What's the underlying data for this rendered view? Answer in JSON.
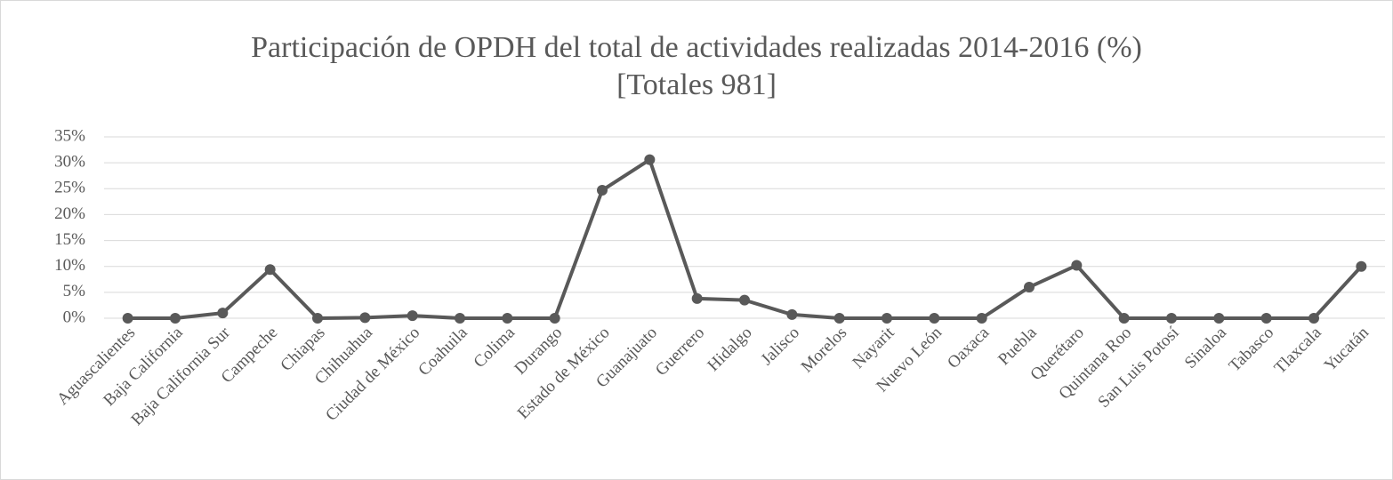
{
  "chart_data": {
    "type": "line",
    "title": "Participación de OPDH del total de actividades realizadas 2014-2016 (%)",
    "subtitle": "[Totales 981]",
    "categories": [
      "Aguascalientes",
      "Baja California",
      "Baja California Sur",
      "Campeche",
      "Chiapas",
      "Chihuahua",
      "Ciudad de México",
      "Coahuila",
      "Colima",
      "Durango",
      "Estado de México",
      "Guanajuato",
      "Guerrero",
      "Hidalgo",
      "Jalisco",
      "Morelos",
      "Nayarit",
      "Nuevo León",
      "Oaxaca",
      "Puebla",
      "Querétaro",
      "Quintana Roo",
      "San Luis Potosí",
      "Sinaloa",
      "Tabasco",
      "Tlaxcala",
      "Yucatán"
    ],
    "values": [
      0,
      0,
      1.0,
      9.4,
      0,
      0.1,
      0.5,
      0,
      0,
      0,
      24.7,
      30.6,
      3.8,
      3.5,
      0.7,
      0,
      0,
      0,
      0,
      6.0,
      10.2,
      0,
      0,
      0,
      0,
      0,
      10.0
    ],
    "color": "#595959",
    "ylim": [
      0,
      35
    ],
    "yticks": [
      {
        "value": 0,
        "label": "0%"
      },
      {
        "value": 5,
        "label": "5%"
      },
      {
        "value": 10,
        "label": "10%"
      },
      {
        "value": 15,
        "label": "15%"
      },
      {
        "value": 20,
        "label": "20%"
      },
      {
        "value": 25,
        "label": "25%"
      },
      {
        "value": 30,
        "label": "30%"
      },
      {
        "value": 35,
        "label": "35%"
      }
    ],
    "grid": true
  }
}
